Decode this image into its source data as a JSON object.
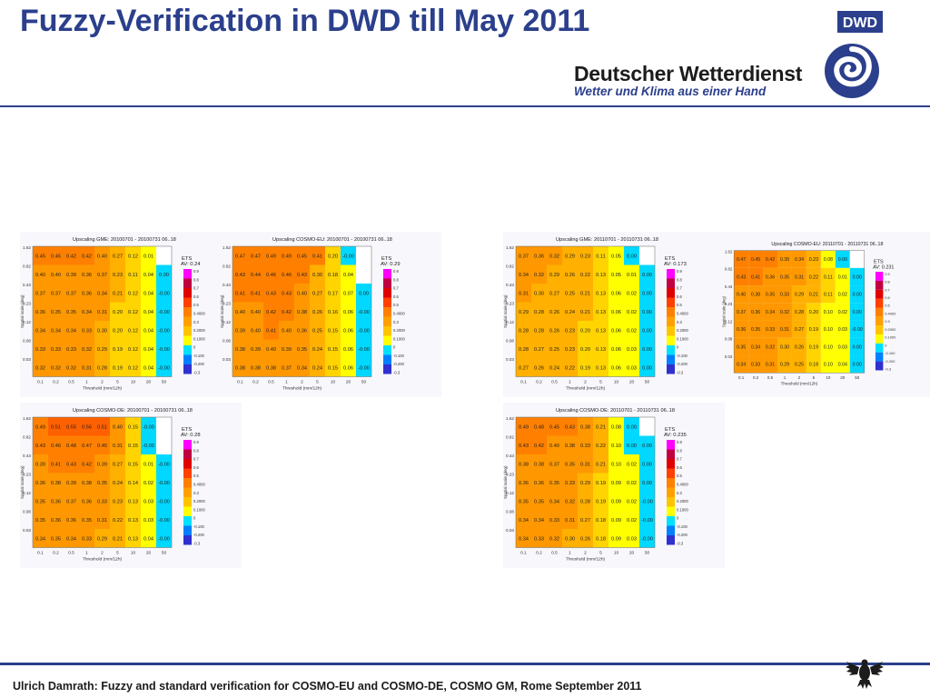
{
  "slide": {
    "title": "Fuzzy-Verification in DWD till May 2011",
    "brand_name": "Deutscher Wetterdienst",
    "brand_tagline": "Wetter und Klima aus einer Hand",
    "logo_text": "DWD",
    "footer": "Ulrich Damrath: Fuzzy and standard verification for COSMO-EU and COSMO-DE, COSMO GM, Rome September 2011"
  },
  "colors": {
    "title": "#2b3f8c",
    "rule": "#2b3f8c",
    "colorbar": [
      "#ff00ff",
      "#c00040",
      "#e00000",
      "#ff4000",
      "#ff8000",
      "#ffa000",
      "#ffc400",
      "#ffff00",
      "#00e0ff",
      "#0080ff",
      "#3030d0"
    ]
  },
  "chart_data": [
    {
      "type": "heatmap",
      "title": "Upscaling GME: 20100701 - 20100731 06..18",
      "xlabel": "Threshold (mm/12h)",
      "ylabel": "Spatial scale (deg)",
      "x": [
        "0.1",
        "0.2",
        "0.5",
        "1",
        "2",
        "5",
        "10",
        "20",
        "50"
      ],
      "y": [
        "1.62",
        "0.82",
        "0.43",
        "0.23",
        "0.12",
        "0.08",
        "0.03"
      ],
      "values": [
        [
          0.45,
          0.45,
          0.42,
          0.42,
          0.4,
          0.27,
          0.12,
          0.01,
          null
        ],
        [
          0.4,
          0.4,
          0.39,
          0.36,
          0.37,
          0.23,
          0.11,
          0.04,
          0.0
        ],
        [
          0.37,
          0.37,
          0.37,
          0.36,
          0.34,
          0.21,
          0.12,
          0.04,
          -0.0
        ],
        [
          0.36,
          0.35,
          0.35,
          0.34,
          0.31,
          0.2,
          0.12,
          0.04,
          -0.0
        ],
        [
          0.34,
          0.34,
          0.34,
          0.33,
          0.3,
          0.2,
          0.12,
          0.04,
          -0.0
        ],
        [
          0.33,
          0.33,
          0.33,
          0.32,
          0.29,
          0.19,
          0.12,
          0.04,
          -0.0
        ],
        [
          0.32,
          0.32,
          0.32,
          0.31,
          0.28,
          0.19,
          0.12,
          0.04,
          -0.0
        ]
      ],
      "score_label": "ETS",
      "av_label": "AV: 0.24",
      "colorbar_labels": [
        "0.9",
        "0.8",
        "0.7",
        "0.6",
        "0.5",
        "0.4000",
        "0.3",
        "0.2000",
        "0.1000",
        "0",
        "-0.100",
        "-0.200",
        "-0.3"
      ]
    },
    {
      "type": "heatmap",
      "title": "Upscaling COSMO-EU: 20100701 - 20100731 06..18",
      "xlabel": "Threshold (mm/12h)",
      "ylabel": "Spatial scale (deg)",
      "x": [
        "0.1",
        "0.2",
        "0.5",
        "1",
        "2",
        "5",
        "10",
        "20",
        "50"
      ],
      "y": [
        "1.62",
        "0.82",
        "0.43",
        "0.23",
        "0.12",
        "0.08",
        "0.03"
      ],
      "values": [
        [
          0.47,
          0.47,
          0.49,
          0.49,
          0.45,
          0.41,
          0.2,
          -0.0,
          null
        ],
        [
          0.43,
          0.44,
          0.46,
          0.46,
          0.43,
          0.3,
          0.18,
          0.04,
          null
        ],
        [
          0.41,
          0.41,
          0.43,
          0.43,
          0.4,
          0.27,
          0.17,
          0.07,
          0.0
        ],
        [
          0.4,
          0.4,
          0.42,
          0.42,
          0.38,
          0.26,
          0.16,
          0.06,
          -0.0
        ],
        [
          0.39,
          0.4,
          0.41,
          0.4,
          0.36,
          0.25,
          0.15,
          0.06,
          -0.0
        ],
        [
          0.38,
          0.39,
          0.4,
          0.39,
          0.35,
          0.24,
          0.15,
          0.06,
          -0.0
        ],
        [
          0.38,
          0.38,
          0.38,
          0.37,
          0.34,
          0.24,
          0.15,
          0.06,
          -0.0
        ]
      ],
      "score_label": "ETS",
      "av_label": "AV: 0.29",
      "colorbar_labels": [
        "0.9",
        "0.8",
        "0.7",
        "0.6",
        "0.5",
        "0.4000",
        "0.3",
        "0.2000",
        "0.1000",
        "0",
        "-0.100",
        "-0.200",
        "-0.3"
      ]
    },
    {
      "type": "heatmap",
      "title": "Upscaling GME: 20110701 - 20110731 06..18",
      "xlabel": "Threshold (mm/12h)",
      "ylabel": "Spatial scale (deg)",
      "x": [
        "0.1",
        "0.2",
        "0.5",
        "1",
        "2",
        "5",
        "10",
        "20",
        "50"
      ],
      "y": [
        "1.62",
        "0.82",
        "0.43",
        "0.23",
        "0.12",
        "0.08",
        "0.03"
      ],
      "values": [
        [
          0.37,
          0.36,
          0.32,
          0.29,
          0.23,
          0.11,
          0.05,
          0.0,
          null
        ],
        [
          0.34,
          0.32,
          0.29,
          0.26,
          0.22,
          0.13,
          0.05,
          0.01,
          0.0
        ],
        [
          0.31,
          0.3,
          0.27,
          0.25,
          0.21,
          0.13,
          0.06,
          0.02,
          0.0
        ],
        [
          0.29,
          0.28,
          0.26,
          0.24,
          0.21,
          0.13,
          0.06,
          0.02,
          0.0
        ],
        [
          0.28,
          0.28,
          0.26,
          0.23,
          0.2,
          0.13,
          0.06,
          0.02,
          0.0
        ],
        [
          0.28,
          0.27,
          0.25,
          0.23,
          0.2,
          0.13,
          0.06,
          0.03,
          0.0
        ],
        [
          0.27,
          0.26,
          0.24,
          0.22,
          0.19,
          0.13,
          0.06,
          0.03,
          0.0
        ]
      ],
      "score_label": "ETS",
      "av_label": "AV: 0.173",
      "colorbar_labels": [
        "0.9",
        "0.8",
        "0.7",
        "0.6",
        "0.5",
        "0.4000",
        "0.3",
        "0.2000",
        "0.1000",
        "0",
        "-0.100",
        "-0.200",
        "-0.3"
      ]
    },
    {
      "type": "heatmap",
      "title": "Upscaling COSMO-EU: 20110701 - 20110731 06..18",
      "xlabel": "Threshold (mm/12h)",
      "ylabel": "Spatial scale (deg)",
      "x": [
        "0.1",
        "0.2",
        "0.5",
        "1",
        "2",
        "5",
        "10",
        "20",
        "50"
      ],
      "y": [
        "1.62",
        "0.82",
        "0.43",
        "0.23",
        "0.12",
        "0.08",
        "0.03"
      ],
      "values": [
        [
          0.47,
          0.45,
          0.42,
          0.39,
          0.34,
          0.23,
          0.08,
          0.0,
          null
        ],
        [
          0.43,
          0.41,
          0.36,
          0.35,
          0.31,
          0.22,
          0.11,
          0.01,
          0.0
        ],
        [
          0.4,
          0.38,
          0.35,
          0.33,
          0.29,
          0.21,
          0.11,
          0.02,
          0.0
        ],
        [
          0.37,
          0.36,
          0.34,
          0.32,
          0.28,
          0.2,
          0.1,
          0.02,
          0.0
        ],
        [
          0.36,
          0.35,
          0.33,
          0.31,
          0.27,
          0.19,
          0.1,
          0.03,
          -0.0
        ],
        [
          0.35,
          0.34,
          0.32,
          0.3,
          0.26,
          0.19,
          0.1,
          0.03,
          0.0
        ],
        [
          0.34,
          0.33,
          0.31,
          0.29,
          0.25,
          0.18,
          0.1,
          0.04,
          0.0
        ]
      ],
      "score_label": "ETS",
      "av_label": "AV: 0.231",
      "colorbar_labels": [
        "0.9",
        "0.8",
        "0.7",
        "0.6",
        "0.5",
        "0.4000",
        "0.3",
        "0.2000",
        "0.1000",
        "0",
        "-0.100",
        "-0.200",
        "-0.3"
      ]
    },
    {
      "type": "heatmap",
      "title": "Upscaling COSMO-DE: 20100701 - 20100731 06..18",
      "xlabel": "Threshold (mm/12h)",
      "ylabel": "Spatial scale (deg)",
      "x": [
        "0.1",
        "0.2",
        "0.5",
        "1",
        "2",
        "5",
        "10",
        "20",
        "50"
      ],
      "y": [
        "1.62",
        "0.82",
        "0.43",
        "0.23",
        "0.12",
        "0.08",
        "0.03"
      ],
      "values": [
        [
          0.49,
          0.51,
          0.55,
          0.56,
          0.51,
          0.4,
          0.15,
          -0.0,
          null
        ],
        [
          0.43,
          0.46,
          0.48,
          0.47,
          0.45,
          0.31,
          0.15,
          -0.0,
          null
        ],
        [
          0.39,
          0.41,
          0.43,
          0.42,
          0.39,
          0.27,
          0.15,
          0.01,
          -0.0
        ],
        [
          0.36,
          0.38,
          0.39,
          0.38,
          0.35,
          0.24,
          0.14,
          0.02,
          -0.0
        ],
        [
          0.35,
          0.36,
          0.37,
          0.36,
          0.33,
          0.23,
          0.13,
          0.03,
          -0.0
        ],
        [
          0.35,
          0.36,
          0.36,
          0.35,
          0.31,
          0.22,
          0.13,
          0.03,
          -0.0
        ],
        [
          0.34,
          0.35,
          0.34,
          0.33,
          0.29,
          0.21,
          0.13,
          0.04,
          -0.0
        ]
      ],
      "score_label": "ETS",
      "av_label": "AV: 0.28",
      "colorbar_labels": [
        "0.9",
        "0.8",
        "0.7",
        "0.6",
        "0.5",
        "0.4000",
        "0.3",
        "0.2000",
        "0.1000",
        "0",
        "-0.100",
        "-0.200",
        "-0.3"
      ]
    },
    {
      "type": "heatmap",
      "title": "Upscaling COSMO-DE: 20110701 - 20110731 06..18",
      "xlabel": "Threshold (mm/12h)",
      "ylabel": "Spatial scale (deg)",
      "x": [
        "0.1",
        "0.2",
        "0.5",
        "1",
        "2",
        "5",
        "10",
        "20",
        "50"
      ],
      "y": [
        "1.62",
        "0.82",
        "0.43",
        "0.23",
        "0.12",
        "0.08",
        "0.03"
      ],
      "values": [
        [
          0.49,
          0.48,
          0.45,
          0.43,
          0.38,
          0.21,
          0.08,
          0.0,
          null
        ],
        [
          0.43,
          0.42,
          0.4,
          0.38,
          0.33,
          0.22,
          0.1,
          0.0,
          0.0
        ],
        [
          0.38,
          0.38,
          0.37,
          0.35,
          0.31,
          0.21,
          0.1,
          0.02,
          0.0
        ],
        [
          0.36,
          0.36,
          0.35,
          0.33,
          0.29,
          0.19,
          0.09,
          0.02,
          0.0
        ],
        [
          0.35,
          0.35,
          0.34,
          0.32,
          0.28,
          0.19,
          0.09,
          0.02,
          -0.0
        ],
        [
          0.34,
          0.34,
          0.33,
          0.31,
          0.27,
          0.18,
          0.09,
          0.02,
          -0.0
        ],
        [
          0.34,
          0.33,
          0.32,
          0.3,
          0.26,
          0.18,
          0.09,
          0.03,
          -0.0
        ]
      ],
      "score_label": "ETS",
      "av_label": "AV: 0.235",
      "colorbar_labels": [
        "0.9",
        "0.8",
        "0.7",
        "0.6",
        "0.5",
        "0.4000",
        "0.3",
        "0.2000",
        "0.1000",
        "0",
        "-0.100",
        "-0.200",
        "-0.3"
      ]
    }
  ]
}
